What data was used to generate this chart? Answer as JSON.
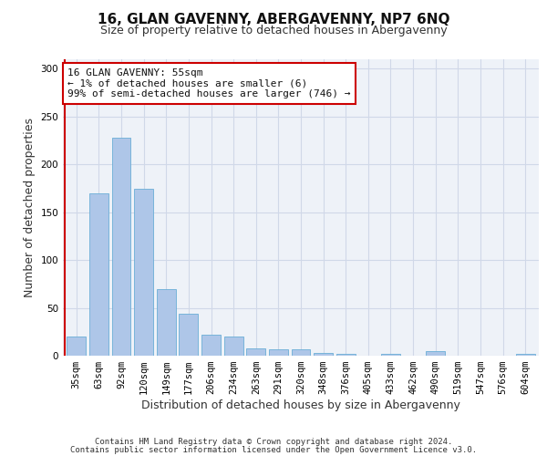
{
  "title1": "16, GLAN GAVENNY, ABERGAVENNY, NP7 6NQ",
  "title2": "Size of property relative to detached houses in Abergavenny",
  "xlabel": "Distribution of detached houses by size in Abergavenny",
  "ylabel": "Number of detached properties",
  "categories": [
    "35sqm",
    "63sqm",
    "92sqm",
    "120sqm",
    "149sqm",
    "177sqm",
    "206sqm",
    "234sqm",
    "263sqm",
    "291sqm",
    "320sqm",
    "348sqm",
    "376sqm",
    "405sqm",
    "433sqm",
    "462sqm",
    "490sqm",
    "519sqm",
    "547sqm",
    "576sqm",
    "604sqm"
  ],
  "values": [
    20,
    170,
    228,
    175,
    70,
    44,
    22,
    20,
    8,
    7,
    7,
    3,
    2,
    0,
    2,
    0,
    5,
    0,
    0,
    0,
    2
  ],
  "bar_color": "#aec6e8",
  "bar_edgecolor": "#6aaed6",
  "annotation_line1": "16 GLAN GAVENNY: 55sqm",
  "annotation_line2": "← 1% of detached houses are smaller (6)",
  "annotation_line3": "99% of semi-detached houses are larger (746) →",
  "annotation_box_color": "#ffffff",
  "annotation_box_edgecolor": "#cc0000",
  "vline_color": "#cc0000",
  "ylim": [
    0,
    310
  ],
  "yticks": [
    0,
    50,
    100,
    150,
    200,
    250,
    300
  ],
  "grid_color": "#d0d8e8",
  "background_color": "#eef2f8",
  "footer_line1": "Contains HM Land Registry data © Crown copyright and database right 2024.",
  "footer_line2": "Contains public sector information licensed under the Open Government Licence v3.0.",
  "title1_fontsize": 11,
  "title2_fontsize": 9,
  "xlabel_fontsize": 9,
  "ylabel_fontsize": 9,
  "tick_fontsize": 7.5,
  "annotation_fontsize": 8,
  "footer_fontsize": 6.5
}
